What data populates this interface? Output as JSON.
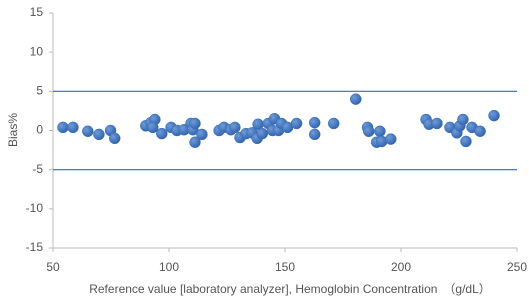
{
  "chart_data": {
    "type": "scatter",
    "x_label": "Reference value [laboratory analyzer], Hemoglobin Concentration　（g/dL）",
    "y_label": "Bias%",
    "color": "#3b6fb8",
    "reference_line_color": "#2e6db4",
    "reference_lines": [
      5,
      -5
    ],
    "xlim": [
      50,
      250
    ],
    "xticks": [
      50,
      100,
      150,
      200,
      250
    ],
    "ylim": [
      -15,
      15
    ],
    "yticks": [
      -15,
      -10,
      -5,
      0,
      5,
      10,
      15
    ],
    "x": [
      54.3,
      58.6,
      65,
      69.8,
      74.8,
      76.6,
      90,
      92.2,
      93.9,
      93,
      96.9,
      100.9,
      103.4,
      106.5,
      109.5,
      110.3,
      111.2,
      111.2,
      114.2,
      121.6,
      123.7,
      126.7,
      128.4,
      130.6,
      133.2,
      135.8,
      138,
      138.4,
      140.2,
      142.8,
      144.6,
      145.5,
      147.2,
      148.5,
      151.1,
      155,
      162.8,
      162.8,
      171,
      180.5,
      185.6,
      186.1,
      189.5,
      190.9,
      191.7,
      195.6,
      210.8,
      212.1,
      215.5,
      221.1,
      224.1,
      225.4,
      226.7,
      228,
      230.6,
      234.1,
      240.1
    ],
    "values": [
      0.4,
      0.4,
      -0.1,
      -0.5,
      0,
      -1.0,
      0.6,
      1.0,
      1.4,
      0.4,
      -0.4,
      0.4,
      0,
      0.1,
      0.9,
      0.1,
      0.9,
      -1.5,
      -0.5,
      0,
      0.4,
      0.1,
      0.4,
      -0.9,
      -0.4,
      -0.3,
      -1.0,
      0.8,
      -0.4,
      0.9,
      0,
      1.5,
      0,
      0.9,
      0.4,
      0.9,
      1.0,
      -0.5,
      0.9,
      4.0,
      0.4,
      -0.1,
      -1.5,
      -0.1,
      -1.4,
      -1.1,
      1.4,
      0.8,
      0.9,
      0.4,
      -0.3,
      0.6,
      1.4,
      -1.4,
      0.4,
      -0.1,
      1.9
    ]
  }
}
